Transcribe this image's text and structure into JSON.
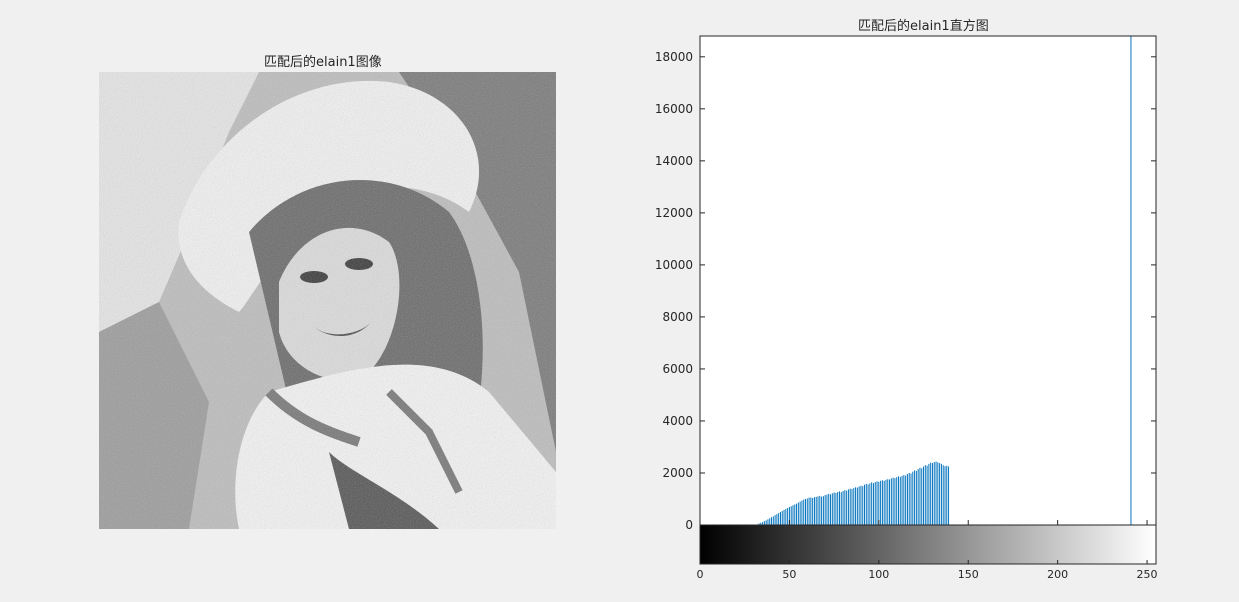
{
  "figure": {
    "left_title": "匹配后的elain1图像",
    "right_title": "匹配后的elain1直方图"
  },
  "image_panel": {
    "description_icon": "grayscale-portrait-image"
  },
  "chart_data": {
    "type": "bar",
    "title": "匹配后的elain1直方图",
    "xlabel": "",
    "ylabel": "",
    "xlim": [
      0,
      255
    ],
    "ylim": [
      0,
      18800
    ],
    "x_ticks": [
      0,
      50,
      100,
      150,
      200,
      250
    ],
    "y_ticks": [
      0,
      2000,
      4000,
      6000,
      8000,
      10000,
      12000,
      14000,
      16000,
      18000
    ],
    "colorbar": "grayscale gradient 0-255",
    "bar_color": "#0072bd",
    "bins": [
      33,
      34,
      35,
      36,
      37,
      38,
      39,
      40,
      41,
      42,
      43,
      44,
      45,
      46,
      47,
      48,
      49,
      50,
      51,
      52,
      53,
      54,
      55,
      56,
      57,
      58,
      59,
      60,
      61,
      62,
      63,
      64,
      65,
      66,
      67,
      68,
      69,
      70,
      71,
      72,
      73,
      74,
      75,
      76,
      77,
      78,
      79,
      80,
      81,
      82,
      83,
      84,
      85,
      86,
      87,
      88,
      89,
      90,
      91,
      92,
      93,
      94,
      95,
      96,
      97,
      98,
      99,
      100,
      101,
      102,
      103,
      104,
      105,
      106,
      107,
      108,
      109,
      110,
      111,
      112,
      113,
      114,
      115,
      116,
      117,
      118,
      119,
      120,
      121,
      122,
      123,
      124,
      125,
      126,
      127,
      128,
      129,
      130,
      131,
      132,
      133,
      134,
      135,
      136,
      137,
      138,
      139,
      241
    ],
    "counts": [
      60,
      90,
      110,
      150,
      180,
      220,
      260,
      300,
      330,
      380,
      420,
      460,
      500,
      540,
      580,
      620,
      650,
      690,
      720,
      760,
      790,
      820,
      860,
      900,
      940,
      980,
      1000,
      1020,
      1050,
      1060,
      1040,
      1070,
      1080,
      1100,
      1120,
      1090,
      1110,
      1150,
      1170,
      1200,
      1180,
      1220,
      1250,
      1230,
      1270,
      1290,
      1260,
      1310,
      1340,
      1320,
      1370,
      1400,
      1380,
      1420,
      1450,
      1440,
      1480,
      1510,
      1490,
      1550,
      1580,
      1560,
      1600,
      1640,
      1610,
      1650,
      1680,
      1660,
      1700,
      1720,
      1700,
      1740,
      1760,
      1750,
      1790,
      1820,
      1800,
      1840,
      1870,
      1850,
      1890,
      1920,
      1900,
      1960,
      2000,
      1980,
      2050,
      2100,
      2080,
      2150,
      2200,
      2180,
      2250,
      2300,
      2280,
      2350,
      2400,
      2380,
      2420,
      2440,
      2410,
      2380,
      2350,
      2300,
      2260,
      2280,
      2250,
      18900
    ]
  }
}
